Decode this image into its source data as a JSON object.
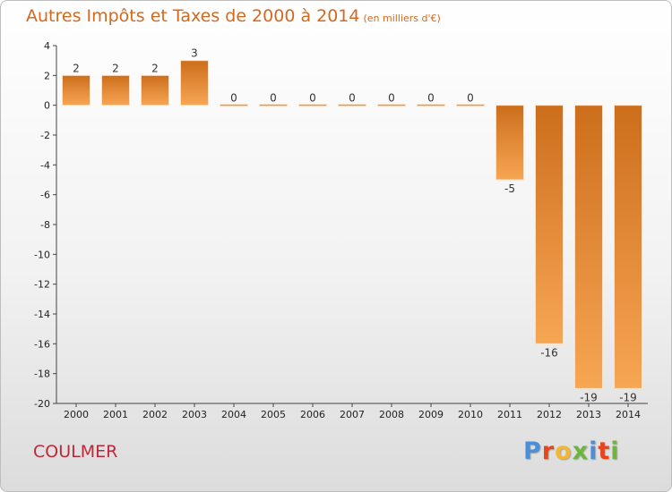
{
  "header": {
    "title": "Autres Impôts et Taxes de 2000 à 2014",
    "subtitle": "(en milliers d'€)"
  },
  "footer": {
    "place": "COULMER",
    "brand_letters": [
      "P",
      "r",
      "o",
      "x",
      "i",
      "t",
      "i"
    ],
    "brand_colors": [
      "#4a90d9",
      "#e8451e",
      "#f2b632",
      "#6fb43f",
      "#4a90d9",
      "#e8451e",
      "#6fb43f"
    ]
  },
  "chart_data": {
    "type": "bar",
    "title": "Autres Impôts et Taxes de 2000 à 2014",
    "subtitle": "(en milliers d'€)",
    "categories": [
      "2000",
      "2001",
      "2002",
      "2003",
      "2004",
      "2005",
      "2006",
      "2007",
      "2008",
      "2009",
      "2010",
      "2011",
      "2012",
      "2013",
      "2014"
    ],
    "values": [
      2,
      2,
      2,
      3,
      0,
      0,
      0,
      0,
      0,
      0,
      0,
      -5,
      -16,
      -19,
      -19
    ],
    "value_labels": [
      "2",
      "2",
      "2",
      "3",
      "0",
      "0",
      "0",
      "0",
      "0",
      "0",
      "0",
      "-5",
      "-16",
      "-19",
      "-19"
    ],
    "ylim": [
      -20,
      4
    ],
    "yticks": [
      4,
      2,
      0,
      -2,
      -4,
      -6,
      -8,
      -10,
      -12,
      -14,
      -16,
      -18,
      -20
    ],
    "ytick_labels": [
      "4",
      "2",
      "0",
      "-2",
      "-4",
      "-6",
      "-8",
      "-10",
      "-12",
      "-14",
      "-16",
      "-18",
      "-20"
    ],
    "bar_color_top": "#cc6e1c",
    "bar_color_bottom": "#f7a654",
    "grid": false,
    "legend": "none"
  }
}
